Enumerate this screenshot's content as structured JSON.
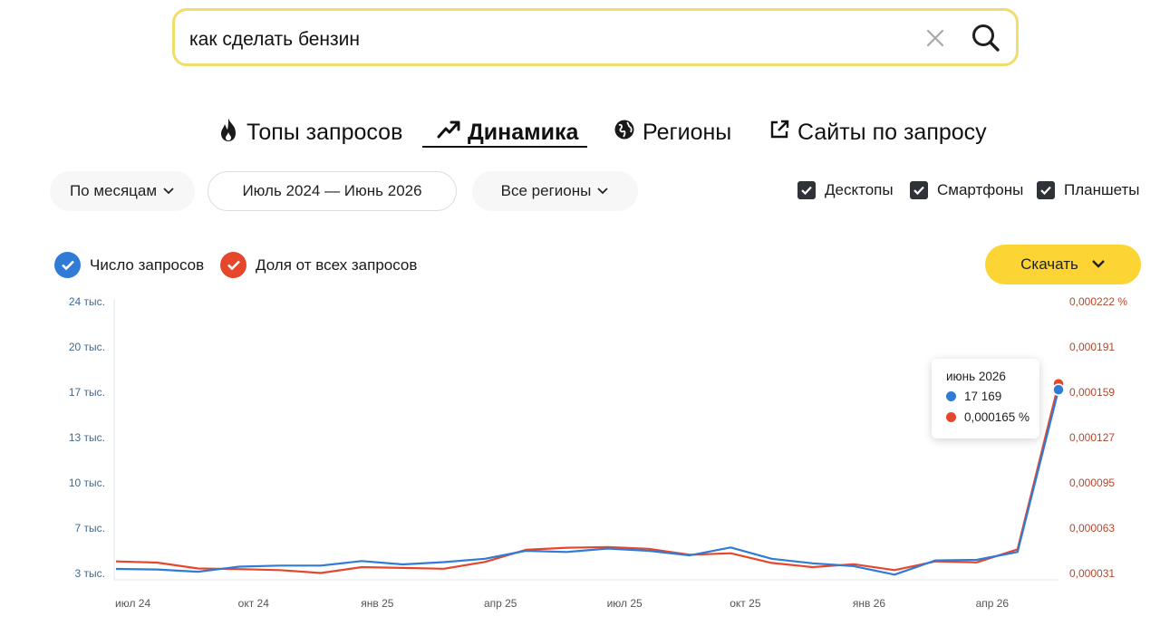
{
  "search": {
    "value": "как сделать бензин",
    "clear_icon": "close-icon",
    "search_icon": "search-icon"
  },
  "tabs": [
    {
      "label": "Топы запросов",
      "icon": "fire-icon"
    },
    {
      "label": "Динамика",
      "icon": "trend-icon",
      "active": true
    },
    {
      "label": "Регионы",
      "icon": "globe-icon"
    },
    {
      "label": "Сайты по запросу",
      "icon": "external-link-icon"
    }
  ],
  "filters": {
    "period_label": "По месяцам",
    "date_range": "Июль 2024 — Июнь 2026",
    "region_label": "Все регионы"
  },
  "devices": [
    {
      "label": "Десктопы",
      "checked": true
    },
    {
      "label": "Смартфоны",
      "checked": true
    },
    {
      "label": "Планшеты",
      "checked": true
    }
  ],
  "legend": {
    "count_label": "Число запросов",
    "share_label": "Доля от всех запросов"
  },
  "download_label": "Скачать",
  "colors": {
    "count_series": "#2f7bd6",
    "share_series": "#e6472c",
    "accent_yellow": "#fcd535",
    "search_border": "#f2dc6b"
  },
  "tooltip": {
    "title": "июнь 2026",
    "count_value": "17 169",
    "share_value": "0,000165 %"
  },
  "chart_data": {
    "type": "line",
    "x": [
      "июл 24",
      "авг 24",
      "сен 24",
      "окт 24",
      "ноя 24",
      "дек 24",
      "янв 25",
      "фев 25",
      "мар 25",
      "апр 25",
      "май 25",
      "июн 25",
      "июл 25",
      "авг 25",
      "сен 25",
      "окт 25",
      "ноя 25",
      "дек 25",
      "янв 26",
      "фев 26",
      "мар 26",
      "апр 26",
      "май 26",
      "июн 26"
    ],
    "xticks": [
      "июл 24",
      "окт 24",
      "янв 25",
      "апр 25",
      "июл 25",
      "окт 25",
      "янв 26",
      "апр 26"
    ],
    "left_axis": {
      "ticks": [
        3000,
        7000,
        10000,
        13000,
        17000,
        20000,
        24000
      ],
      "labels": [
        "3 тыс.",
        "7 тыс.",
        "10 тыс.",
        "13 тыс.",
        "17 тыс.",
        "20 тыс.",
        "24 тыс."
      ]
    },
    "right_axis": {
      "ticks": [
        3.1e-05,
        6.3e-05,
        9.5e-05,
        0.000127,
        0.000159,
        0.000191,
        0.000222
      ],
      "labels": [
        "0,000031",
        "0,000063",
        "0,000095",
        "0,000127",
        "0,000159",
        "0,000191",
        "0,000222 %"
      ]
    },
    "series": [
      {
        "name": "Число запросов",
        "axis": "left",
        "values": [
          3400,
          3350,
          3150,
          3600,
          3700,
          3700,
          4100,
          3800,
          4000,
          4300,
          5000,
          4900,
          5200,
          5000,
          4600,
          5300,
          4300,
          3900,
          3650,
          2900,
          4150,
          4200,
          4900,
          17169
        ]
      },
      {
        "name": "Доля от всех запросов",
        "axis": "right",
        "values": [
          3.95e-05,
          3.87e-05,
          3.45e-05,
          3.41e-05,
          3.34e-05,
          3.13e-05,
          3.55e-05,
          3.49e-05,
          3.43e-05,
          3.91e-05,
          4.77e-05,
          4.92e-05,
          4.96e-05,
          4.84e-05,
          4.42e-05,
          4.53e-05,
          3.84e-05,
          3.55e-05,
          3.75e-05,
          3.34e-05,
          3.95e-05,
          3.88e-05,
          4.8e-05,
          0.000165
        ]
      }
    ]
  }
}
